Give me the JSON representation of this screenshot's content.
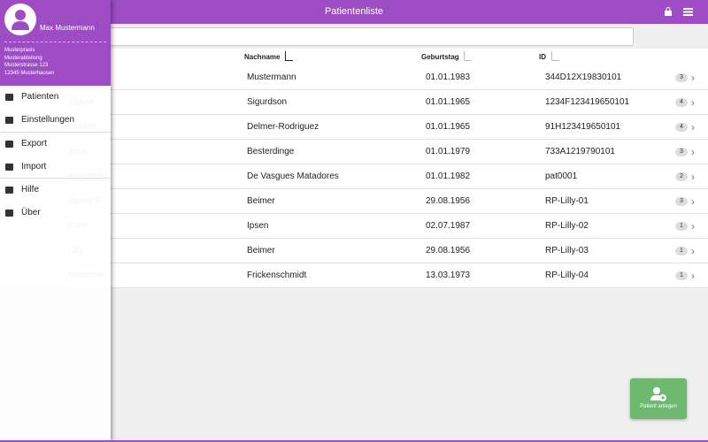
{
  "header": {
    "title": "Patientenliste"
  },
  "user": {
    "name": "Max Mustermann",
    "address": [
      "Musterpraxis",
      "Musterabteilung",
      "Musterstrasse 123",
      "12345 Musterhausen"
    ]
  },
  "menu": [
    "Patienten",
    "Einstellungen",
    "Export",
    "Import",
    "Hilfe",
    "Über"
  ],
  "table": {
    "columns": [
      "Nachname",
      "Geburtstag",
      "ID"
    ],
    "rows": [
      {
        "last": "Mustermann",
        "birthday": "01.01.1983",
        "id": "344D12X19830101",
        "count": 3
      },
      {
        "first": "Sigurd",
        "last": "Sigurdson",
        "birthday": "01.01.1965",
        "id": "1234F123419650101",
        "count": 4
      },
      {
        "first": "Sabine",
        "last": "Delmer-Rodriguez",
        "birthday": "01.01.1965",
        "id": "91H123419650101",
        "count": 4
      },
      {
        "first": "Irene",
        "last": "Besterdinge",
        "birthday": "01.01.1979",
        "id": "733A1219790101",
        "count": 3
      },
      {
        "first": "Annabelle",
        "last": "De Vasgues Matadores",
        "birthday": "01.01.1982",
        "id": "pat0001",
        "count": 2
      },
      {
        "first": "Benny B.",
        "last": "Beimer",
        "birthday": "29.08.1956",
        "id": "RP-Lilly-01",
        "count": 3
      },
      {
        "first": "Care",
        "last": "Ipsen",
        "birthday": "02.07.1987",
        "id": "RP-Lilly-02",
        "count": 1
      },
      {
        "first": "Lilly",
        "last": "Beimer",
        "birthday": "29.08.1956",
        "id": "RP-Lilly-03",
        "count": 1
      },
      {
        "first": "Marianne",
        "last": "Frickenschmidt",
        "birthday": "13.03.1973",
        "id": "RP-Lilly-04",
        "count": 1
      }
    ]
  },
  "button": "Patient anlegen"
}
